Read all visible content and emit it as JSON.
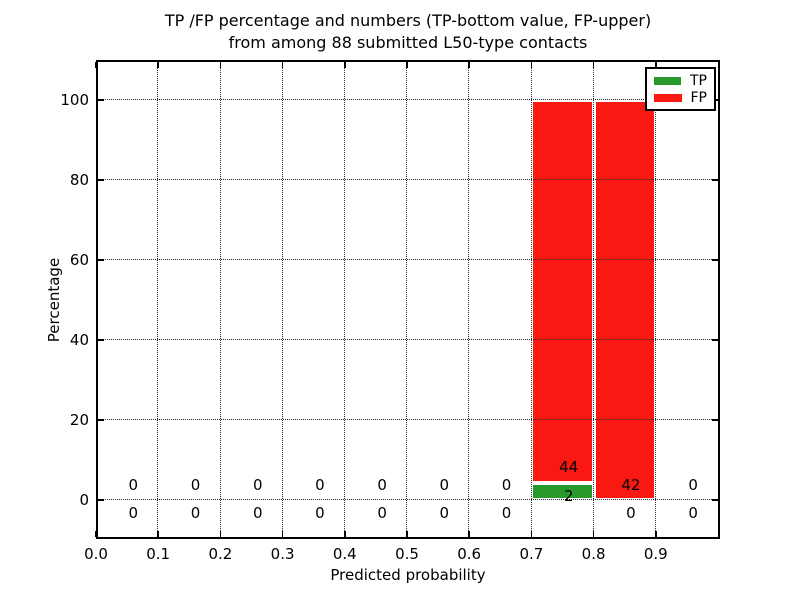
{
  "chart_data": {
    "type": "bar",
    "stacked": true,
    "title_line1": "TP /FP percentage and numbers (TP-bottom value, FP-upper)",
    "title_line2": "from among 88 submitted L50-type contacts",
    "total_submitted_contacts": 88,
    "xlabel": "Predicted probability",
    "ylabel": "Percentage",
    "xlim": [
      0.0,
      1.0
    ],
    "ylim": [
      -10,
      110
    ],
    "grid": "dotted",
    "legend_position": "upper right",
    "xticks": [
      "0.0",
      "0.1",
      "0.2",
      "0.3",
      "0.4",
      "0.5",
      "0.6",
      "0.7",
      "0.8",
      "0.9"
    ],
    "yticks": [
      "0",
      "20",
      "40",
      "60",
      "80",
      "100"
    ],
    "series": [
      {
        "name": "TP",
        "color": "#279a2b"
      },
      {
        "name": "FP",
        "color": "#fa1813"
      }
    ],
    "bins": [
      {
        "x0": 0.0,
        "x1": 0.1,
        "tp_count": 0,
        "fp_count": 0,
        "tp_pct": 0,
        "fp_pct": 0
      },
      {
        "x0": 0.1,
        "x1": 0.2,
        "tp_count": 0,
        "fp_count": 0,
        "tp_pct": 0,
        "fp_pct": 0
      },
      {
        "x0": 0.2,
        "x1": 0.3,
        "tp_count": 0,
        "fp_count": 0,
        "tp_pct": 0,
        "fp_pct": 0
      },
      {
        "x0": 0.3,
        "x1": 0.4,
        "tp_count": 0,
        "fp_count": 0,
        "tp_pct": 0,
        "fp_pct": 0
      },
      {
        "x0": 0.4,
        "x1": 0.5,
        "tp_count": 0,
        "fp_count": 0,
        "tp_pct": 0,
        "fp_pct": 0
      },
      {
        "x0": 0.5,
        "x1": 0.6,
        "tp_count": 0,
        "fp_count": 0,
        "tp_pct": 0,
        "fp_pct": 0
      },
      {
        "x0": 0.6,
        "x1": 0.7,
        "tp_count": 0,
        "fp_count": 0,
        "tp_pct": 0,
        "fp_pct": 0
      },
      {
        "x0": 0.7,
        "x1": 0.8,
        "tp_count": 2,
        "fp_count": 44,
        "tp_pct": 4.35,
        "fp_pct": 95.65
      },
      {
        "x0": 0.8,
        "x1": 0.9,
        "tp_count": 0,
        "fp_count": 42,
        "tp_pct": 0,
        "fp_pct": 100
      },
      {
        "x0": 0.9,
        "x1": 1.0,
        "tp_count": 0,
        "fp_count": 0,
        "tp_pct": 0,
        "fp_pct": 0
      }
    ]
  }
}
